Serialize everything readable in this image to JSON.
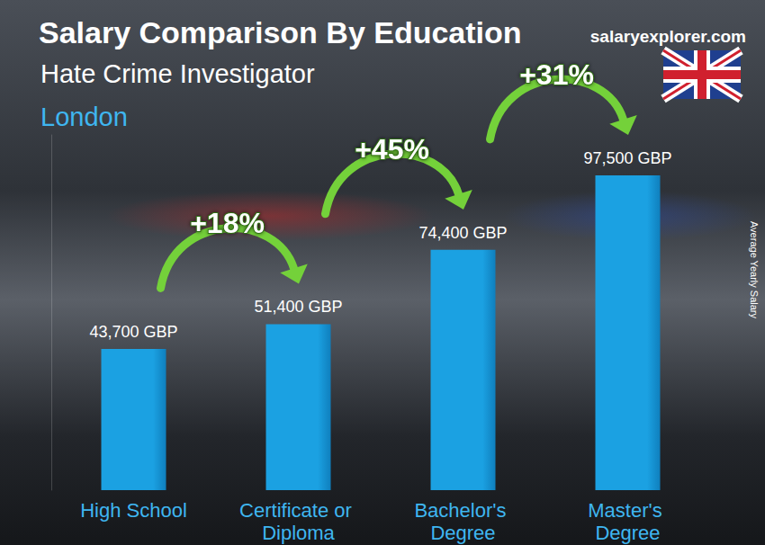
{
  "chart_data": {
    "type": "bar",
    "title": "Salary Comparison By Education",
    "subtitle": "Hate Crime Investigator",
    "location": "London",
    "source": "salaryexplorer.com",
    "y_label": "Average Yearly Salary",
    "categories": [
      "High School",
      "Certificate or Diploma",
      "Bachelor's Degree",
      "Master's Degree"
    ],
    "values": [
      43700,
      51400,
      74400,
      97500
    ],
    "value_labels": [
      "43,700 GBP",
      "51,400 GBP",
      "74,400 GBP",
      "97,500 GBP"
    ],
    "color": "#1ba1e2",
    "ylim": [
      0,
      110000
    ],
    "grid": false,
    "data_labels": true,
    "tick_labels": "x",
    "annotations": [
      {
        "text": "+18%",
        "from": "High School",
        "to": "Certificate or Diploma"
      },
      {
        "text": "+45%",
        "from": "Certificate or Diploma",
        "to": "Bachelor's Degree"
      },
      {
        "text": "+31%",
        "from": "Bachelor's Degree",
        "to": "Master's Degree"
      }
    ]
  }
}
